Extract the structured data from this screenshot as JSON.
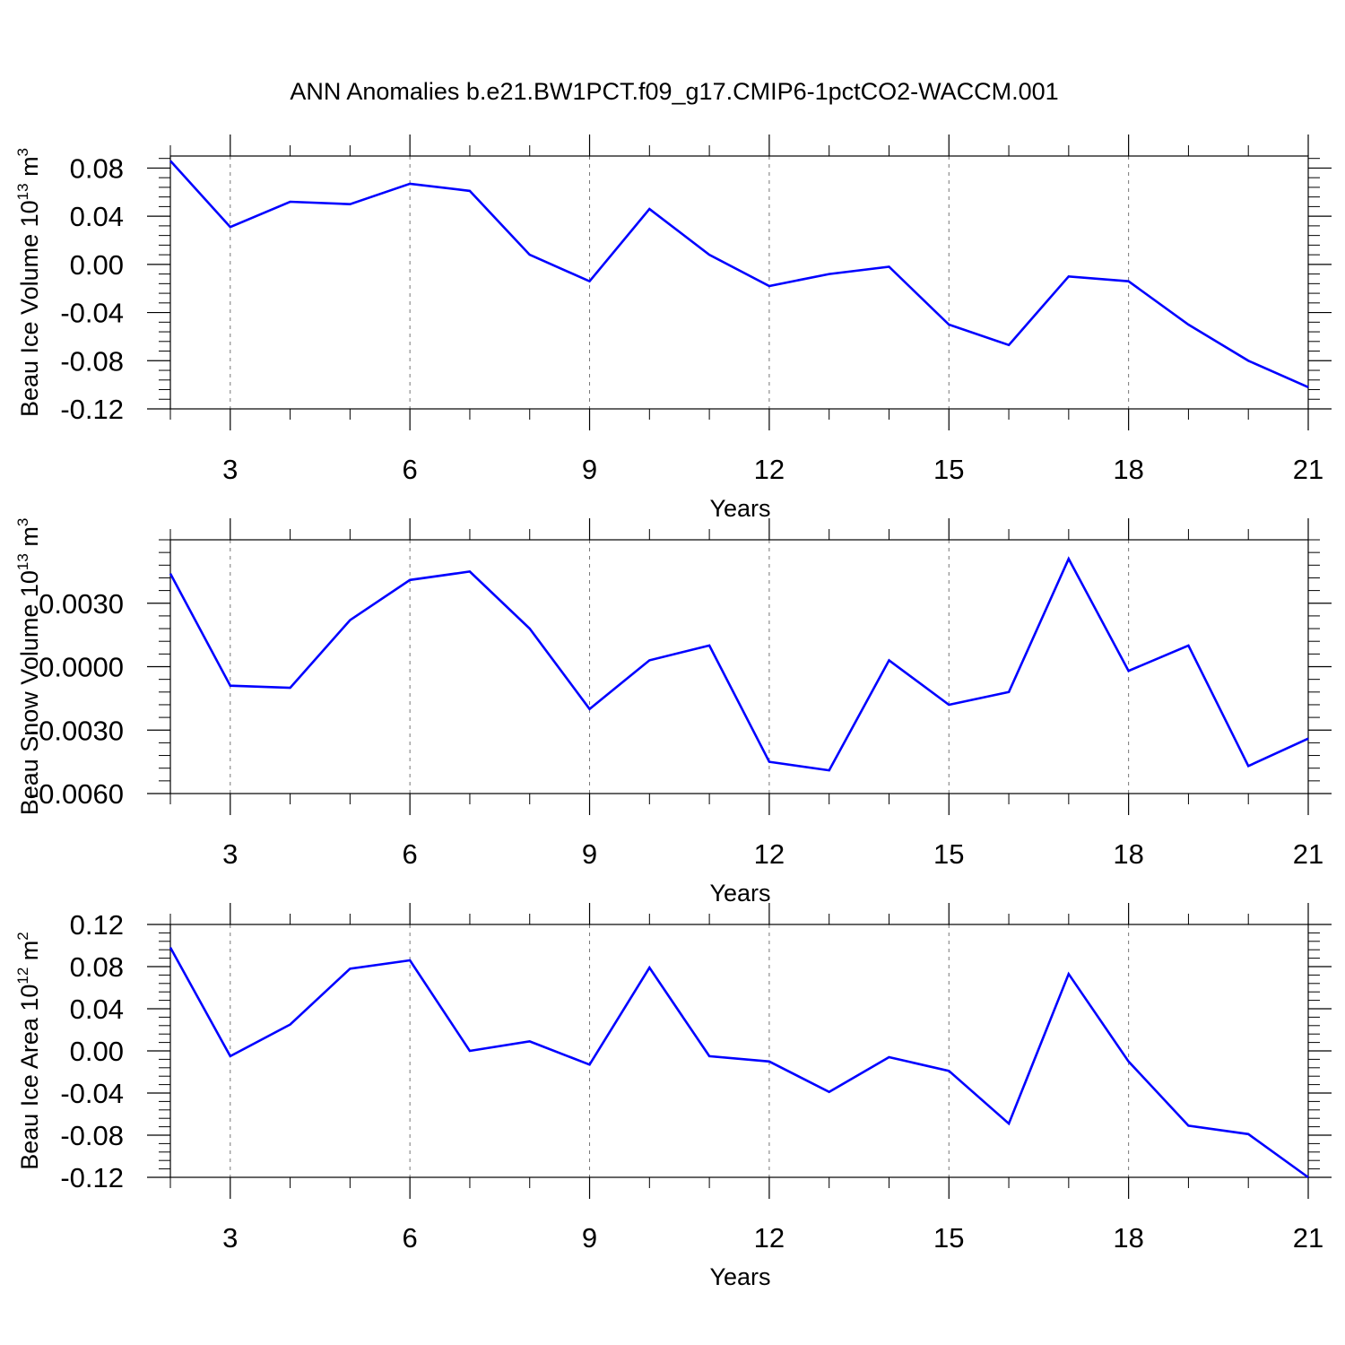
{
  "title": "ANN Anomalies b.e21.BW1PCT.f09_g17.CMIP6-1pctCO2-WACCM.001",
  "colors": {
    "series": "#0000ff",
    "axis": "#000000",
    "grid": "#777777"
  },
  "chart_data": [
    {
      "type": "line",
      "ylabel": {
        "main": "Beau Ice Volume 10",
        "exp": "13",
        "unit": " m",
        "unit_exp": "3"
      },
      "xlabel": "Years",
      "xlim": [
        2,
        21
      ],
      "ylim": [
        -0.12,
        0.09
      ],
      "xticks": [
        3,
        6,
        9,
        12,
        15,
        18,
        21
      ],
      "yticks": [
        -0.12,
        -0.08,
        -0.04,
        0.0,
        0.04,
        0.08
      ],
      "ytick_labels": [
        "-0.12",
        "-0.08",
        "-0.04",
        "0.00",
        "0.04",
        "0.08"
      ],
      "grid": "vertical dashed at x ticks",
      "x": [
        2,
        3,
        4,
        5,
        6,
        7,
        8,
        9,
        10,
        11,
        12,
        13,
        14,
        15,
        16,
        17,
        18,
        19,
        20,
        21
      ],
      "series": [
        {
          "values": [
            0.086,
            0.031,
            0.052,
            0.05,
            0.067,
            0.061,
            0.008,
            -0.014,
            0.046,
            0.008,
            -0.018,
            -0.008,
            -0.002,
            -0.05,
            -0.067,
            -0.01,
            -0.014,
            -0.05,
            -0.08,
            -0.102
          ]
        }
      ]
    },
    {
      "type": "line",
      "ylabel": {
        "main": "Beau Snow Volume 10",
        "exp": "13",
        "unit": " m",
        "unit_exp": "3"
      },
      "xlabel": "Years",
      "xlim": [
        2,
        21
      ],
      "ylim": [
        -0.006,
        0.006
      ],
      "xticks": [
        3,
        6,
        9,
        12,
        15,
        18,
        21
      ],
      "yticks": [
        -0.006,
        -0.003,
        0.0,
        0.003
      ],
      "ytick_labels": [
        "-0.0060",
        "-0.0030",
        "0.0000",
        "0.0030"
      ],
      "grid": "vertical dashed at x ticks",
      "x": [
        2,
        3,
        4,
        5,
        6,
        7,
        8,
        9,
        10,
        11,
        12,
        13,
        14,
        15,
        16,
        17,
        18,
        19,
        20,
        21
      ],
      "series": [
        {
          "values": [
            0.0044,
            -0.0009,
            -0.001,
            0.0022,
            0.0041,
            0.0045,
            0.0018,
            -0.002,
            0.0003,
            0.001,
            -0.0045,
            -0.0049,
            0.0003,
            -0.0018,
            -0.0012,
            0.0051,
            -0.0002,
            0.001,
            -0.0047,
            -0.0034
          ]
        }
      ]
    },
    {
      "type": "line",
      "ylabel": {
        "main": "Beau Ice Area 10",
        "exp": "12",
        "unit": " m",
        "unit_exp": "2"
      },
      "xlabel": "Years",
      "xlim": [
        2,
        21
      ],
      "ylim": [
        -0.12,
        0.12
      ],
      "xticks": [
        3,
        6,
        9,
        12,
        15,
        18,
        21
      ],
      "yticks": [
        -0.12,
        -0.08,
        -0.04,
        0.0,
        0.04,
        0.08,
        0.12
      ],
      "ytick_labels": [
        "-0.12",
        "-0.08",
        "-0.04",
        "0.00",
        "0.04",
        "0.08",
        "0.12"
      ],
      "grid": "vertical dashed at x ticks",
      "x": [
        2,
        3,
        4,
        5,
        6,
        7,
        8,
        9,
        10,
        11,
        12,
        13,
        14,
        15,
        16,
        17,
        18,
        19,
        20,
        21
      ],
      "series": [
        {
          "values": [
            0.098,
            -0.005,
            0.025,
            0.078,
            0.086,
            0.0,
            0.009,
            -0.013,
            0.079,
            -0.005,
            -0.01,
            -0.039,
            -0.006,
            -0.019,
            -0.069,
            0.073,
            -0.01,
            -0.071,
            -0.079,
            -0.12
          ]
        }
      ]
    }
  ]
}
